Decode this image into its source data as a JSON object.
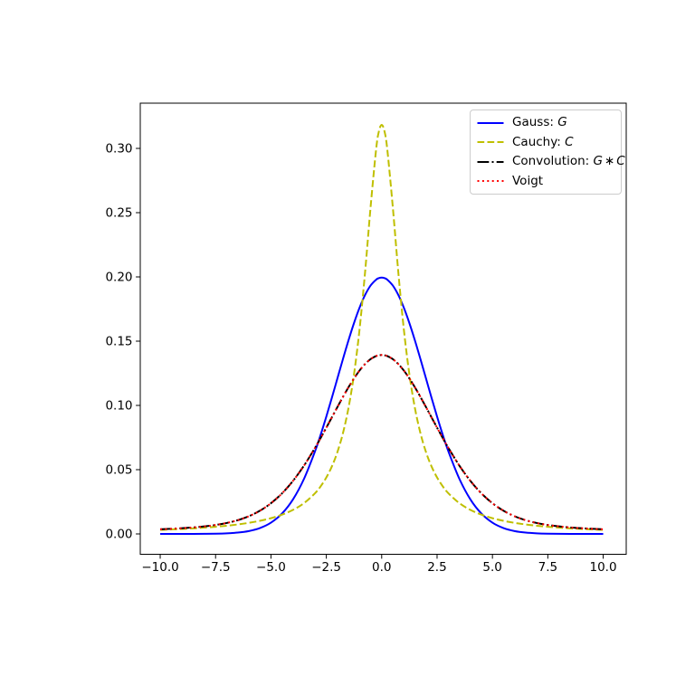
{
  "figure": {
    "background": "#ffffff"
  },
  "chart_data": {
    "type": "line",
    "title": "",
    "xlabel": "",
    "ylabel": "",
    "grid": false,
    "xlim": [
      -10.9,
      11.04
    ],
    "ylim": [
      -0.01585,
      0.33521
    ],
    "x_ticks": {
      "values": [
        -10.0,
        -7.5,
        -5.0,
        -2.5,
        0.0,
        2.5,
        5.0,
        7.5,
        10.0
      ],
      "labels": [
        "−10.0",
        "−7.5",
        "−5.0",
        "−2.5",
        "0.0",
        "2.5",
        "5.0",
        "7.5",
        "10.0"
      ]
    },
    "y_ticks": {
      "values": [
        0.0,
        0.05,
        0.1,
        0.15,
        0.2,
        0.25,
        0.3
      ],
      "labels": [
        "0.00",
        "0.05",
        "0.10",
        "0.15",
        "0.20",
        "0.25",
        "0.30"
      ]
    },
    "legend": {
      "position": "upper right",
      "border_color": "#cccccc"
    },
    "x": [
      -10,
      -9.5,
      -9,
      -8.5,
      -8,
      -7.5,
      -7,
      -6.5,
      -6,
      -5.5,
      -5,
      -4.5,
      -4,
      -3.5,
      -3,
      -2.75,
      -2.5,
      -2.25,
      -2,
      -1.75,
      -1.5,
      -1.25,
      -1,
      -0.75,
      -0.5,
      -0.25,
      -0.125,
      0,
      0.125,
      0.25,
      0.5,
      0.75,
      1,
      1.25,
      1.5,
      1.75,
      2,
      2.25,
      2.5,
      2.75,
      3,
      3.5,
      4,
      4.5,
      5,
      5.5,
      6,
      6.5,
      7,
      7.5,
      8,
      8.5,
      9,
      9.5,
      10
    ],
    "series": [
      {
        "id": "gauss",
        "label": "Gauss: $G$",
        "label_parts": [
          {
            "t": "Gauss: "
          },
          {
            "t": "G",
            "italic": true
          }
        ],
        "color": "#0000ff",
        "linestyle": "solid",
        "values": [
          1e-06,
          3e-06,
          8e-06,
          2.4e-05,
          6.7e-05,
          0.000176,
          0.000436,
          0.001015,
          0.002216,
          0.004553,
          0.008764,
          0.01587,
          0.026996,
          0.043139,
          0.064759,
          0.077506,
          0.091324,
          0.105939,
          0.120985,
          0.136026,
          0.150569,
          0.16408,
          0.176034,
          0.185928,
          0.193334,
          0.197919,
          0.199082,
          0.199471,
          0.199082,
          0.197919,
          0.193334,
          0.185928,
          0.176034,
          0.16408,
          0.150569,
          0.136026,
          0.120985,
          0.105939,
          0.091324,
          0.077506,
          0.064759,
          0.043139,
          0.026996,
          0.01587,
          0.008764,
          0.004553,
          0.002216,
          0.001015,
          0.000436,
          0.000176,
          6.7e-05,
          2.4e-05,
          8e-06,
          3e-06,
          1e-06
        ]
      },
      {
        "id": "cauchy",
        "label": "Cauchy: $C$",
        "label_parts": [
          {
            "t": "Cauchy: "
          },
          {
            "t": "C",
            "italic": true
          }
        ],
        "color": "#bfbf00",
        "linestyle": "dashed",
        "values": [
          0.003151,
          0.003488,
          0.003882,
          0.004346,
          0.004897,
          0.00556,
          0.006366,
          0.00736,
          0.008603,
          0.010186,
          0.012243,
          0.014979,
          0.018724,
          0.024023,
          0.031831,
          0.037175,
          0.043905,
          0.052504,
          0.063662,
          0.078353,
          0.097942,
          0.124218,
          0.159155,
          0.203718,
          0.254648,
          0.299586,
          0.313398,
          0.31831,
          0.313398,
          0.299586,
          0.254648,
          0.203718,
          0.159155,
          0.124218,
          0.097942,
          0.078353,
          0.063662,
          0.052504,
          0.043905,
          0.037175,
          0.031831,
          0.024023,
          0.018724,
          0.014979,
          0.012243,
          0.010186,
          0.008603,
          0.00736,
          0.006366,
          0.00556,
          0.004897,
          0.004346,
          0.003882,
          0.003488,
          0.003151
        ]
      },
      {
        "id": "convolution",
        "label": "Convolution: $G * C$",
        "label_parts": [
          {
            "t": "Convolution: "
          },
          {
            "t": "G",
            "italic": true
          },
          {
            "t": "∗",
            "op": true
          },
          {
            "t": "C",
            "italic": true
          }
        ],
        "color": "#000000",
        "linestyle": "dashdot",
        "values": [
          0.003593,
          0.003979,
          0.004453,
          0.005057,
          0.005854,
          0.006948,
          0.008482,
          0.010657,
          0.013737,
          0.018025,
          0.023866,
          0.031574,
          0.041374,
          0.053331,
          0.067267,
          0.074842,
          0.082683,
          0.090687,
          0.098709,
          0.10657,
          0.114078,
          0.121007,
          0.127141,
          0.132213,
          0.136035,
          0.138409,
          0.13901,
          0.13922,
          0.13901,
          0.138409,
          0.136035,
          0.132213,
          0.127141,
          0.121007,
          0.114078,
          0.10657,
          0.098709,
          0.090687,
          0.082683,
          0.074842,
          0.067267,
          0.053331,
          0.041374,
          0.031574,
          0.023866,
          0.018025,
          0.013737,
          0.010657,
          0.008482,
          0.006948,
          0.005854,
          0.005057,
          0.004453,
          0.003979,
          0.003593
        ]
      },
      {
        "id": "voigt",
        "label": "Voigt",
        "label_parts": [
          {
            "t": "Voigt"
          }
        ],
        "color": "#ff0000",
        "linestyle": "dotted",
        "values": [
          0.003593,
          0.003979,
          0.004453,
          0.005057,
          0.005854,
          0.006948,
          0.008482,
          0.010657,
          0.013737,
          0.018025,
          0.023866,
          0.031574,
          0.041374,
          0.053331,
          0.067267,
          0.074842,
          0.082683,
          0.090687,
          0.098709,
          0.10657,
          0.114078,
          0.121007,
          0.127141,
          0.132213,
          0.136035,
          0.138409,
          0.13901,
          0.13922,
          0.13901,
          0.138409,
          0.136035,
          0.132213,
          0.127141,
          0.121007,
          0.114078,
          0.10657,
          0.098709,
          0.090687,
          0.082683,
          0.074842,
          0.067267,
          0.053331,
          0.041374,
          0.031574,
          0.023866,
          0.018025,
          0.013737,
          0.010657,
          0.008482,
          0.006948,
          0.005854,
          0.005057,
          0.004453,
          0.003979,
          0.003593
        ]
      }
    ]
  }
}
